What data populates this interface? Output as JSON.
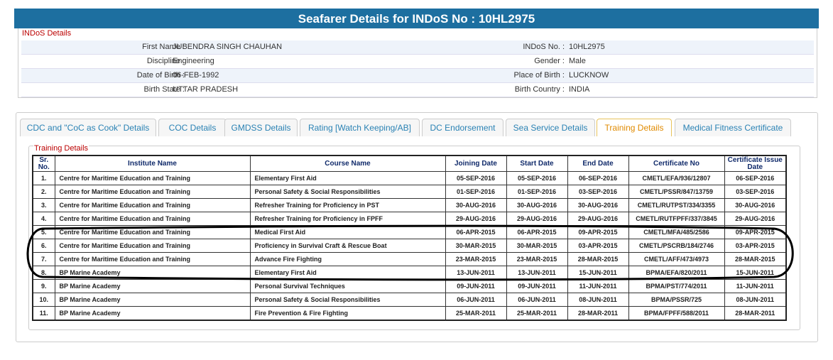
{
  "header": {
    "title": "Seafarer Details for INDoS No : 10HL2975"
  },
  "details": {
    "legend": "INDoS Details",
    "rows": [
      [
        "First Name :",
        "JUBENDRA SINGH CHAUHAN",
        "INDoS No. :",
        "10HL2975"
      ],
      [
        "Discipline :",
        "Engineering",
        "Gender :",
        "Male"
      ],
      [
        "Date of Birth :",
        "06-FEB-1992",
        "Place of Birth :",
        "LUCKNOW"
      ],
      [
        "Birth State :",
        "UTTAR PRADESH",
        "Birth Country :",
        "INDIA"
      ]
    ]
  },
  "tabs": [
    "CDC and \"CoC as Cook\" Details",
    "COC Details",
    "GMDSS Details",
    "Rating [Watch Keeping/AB]",
    "DC Endorsement",
    "Sea Service Details",
    "Training Details",
    "Medical Fitness Certificate"
  ],
  "table": {
    "legend": "Training Details",
    "headers": [
      "Sr. No.",
      "Institute Name",
      "Course Name",
      "Joining Date",
      "Start Date",
      "End Date",
      "Certificate No",
      "Certificate Issue Date"
    ],
    "rows": [
      [
        "1.",
        "Centre for Maritime Education and Training",
        "Elementary First Aid",
        "05-SEP-2016",
        "05-SEP-2016",
        "06-SEP-2016",
        "CMETL/EFA/936/12807",
        "06-SEP-2016"
      ],
      [
        "2.",
        "Centre for Maritime Education and Training",
        "Personal Safety & Social Responsibilities",
        "01-SEP-2016",
        "01-SEP-2016",
        "03-SEP-2016",
        "CMETL/PSSR/847/13759",
        "03-SEP-2016"
      ],
      [
        "3.",
        "Centre for Maritime Education and Training",
        "Refresher Training for Proficiency in PST",
        "30-AUG-2016",
        "30-AUG-2016",
        "30-AUG-2016",
        "CMETL/RUTPST/334/3355",
        "30-AUG-2016"
      ],
      [
        "4.",
        "Centre for Maritime Education and Training",
        "Refresher Training for Proficiency in FPFF",
        "29-AUG-2016",
        "29-AUG-2016",
        "29-AUG-2016",
        "CMETL/RUTFPFF/337/3845",
        "29-AUG-2016"
      ],
      [
        "5.",
        "Centre for Maritime Education and Training",
        "Medical First Aid",
        "06-APR-2015",
        "06-APR-2015",
        "09-APR-2015",
        "CMETL/MFA/485/2586",
        "09-APR-2015"
      ],
      [
        "6.",
        "Centre for Maritime Education and Training",
        "Proficiency in Survival Craft & Rescue Boat",
        "30-MAR-2015",
        "30-MAR-2015",
        "03-APR-2015",
        "CMETL/PSCRB/184/2746",
        "03-APR-2015"
      ],
      [
        "7.",
        "Centre for Maritime Education and Training",
        "Advance Fire Fighting",
        "23-MAR-2015",
        "23-MAR-2015",
        "28-MAR-2015",
        "CMETL/AFF/473/4973",
        "28-MAR-2015"
      ],
      [
        "8.",
        "BP Marine Academy",
        "Elementary First Aid",
        "13-JUN-2011",
        "13-JUN-2011",
        "15-JUN-2011",
        "BPMA/EFA/820/2011",
        "15-JUN-2011"
      ],
      [
        "9.",
        "BP Marine Academy",
        "Personal Survival Techniques",
        "09-JUN-2011",
        "09-JUN-2011",
        "11-JUN-2011",
        "BPMA/PST/774/2011",
        "11-JUN-2011"
      ],
      [
        "10.",
        "BP Marine Academy",
        "Personal Safety & Social Responsibilities",
        "06-JUN-2011",
        "06-JUN-2011",
        "08-JUN-2011",
        "BPMA/PSSR/725",
        "08-JUN-2011"
      ],
      [
        "11.",
        "BP Marine Academy",
        "Fire Prevention & Fire Fighting",
        "25-MAR-2011",
        "25-MAR-2011",
        "28-MAR-2011",
        "BPMA/FPFF/588/2011",
        "28-MAR-2011"
      ]
    ]
  }
}
